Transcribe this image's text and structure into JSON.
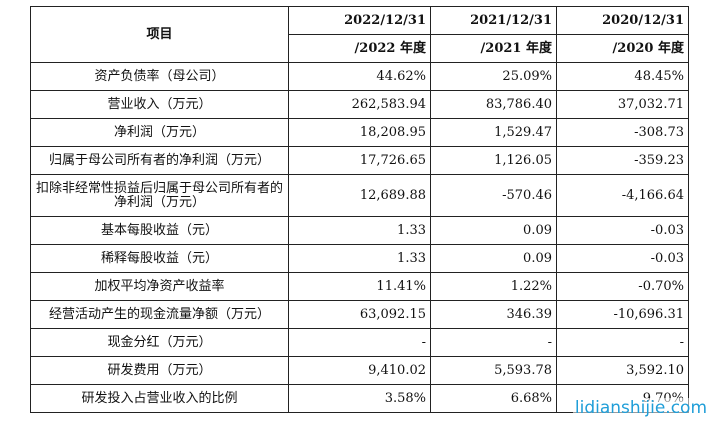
{
  "table": {
    "header_item": "项目",
    "years_top": [
      "2022/12/31",
      "2021/12/31",
      "2020/12/31"
    ],
    "years_bottom": [
      "/2022 年度",
      "/2021 年度",
      "/2020 年度"
    ],
    "rows": [
      {
        "label": "资产负债率（母公司）",
        "values": [
          "44.62%",
          "25.09%",
          "48.45%"
        ]
      },
      {
        "label": "营业收入（万元）",
        "values": [
          "262,583.94",
          "83,786.40",
          "37,032.71"
        ]
      },
      {
        "label": "净利润（万元）",
        "values": [
          "18,208.95",
          "1,529.47",
          "-308.73"
        ]
      },
      {
        "label": "归属于母公司所有者的净利润（万元）",
        "values": [
          "17,726.65",
          "1,126.05",
          "-359.23"
        ]
      },
      {
        "label": "扣除非经常性损益后归属于母公司所有者的净利润（万元）",
        "values": [
          "12,689.88",
          "-570.46",
          "-4,166.64"
        ]
      },
      {
        "label": "基本每股收益（元）",
        "values": [
          "1.33",
          "0.09",
          "-0.03"
        ]
      },
      {
        "label": "稀释每股收益（元）",
        "values": [
          "1.33",
          "0.09",
          "-0.03"
        ]
      },
      {
        "label": "加权平均净资产收益率",
        "values": [
          "11.41%",
          "1.22%",
          "-0.70%"
        ]
      },
      {
        "label": "经营活动产生的现金流量净额（万元）",
        "values": [
          "63,092.15",
          "346.39",
          "-10,696.31"
        ]
      },
      {
        "label": "现金分红（万元）",
        "values": [
          "-",
          "-",
          "-"
        ]
      },
      {
        "label": "研发费用（万元）",
        "values": [
          "9,410.02",
          "5,593.78",
          "3,592.10"
        ]
      },
      {
        "label": "研发投入占营业收入的比例",
        "values": [
          "3.58%",
          "6.68%",
          "9.70%"
        ]
      }
    ]
  },
  "watermark": "lidianshijie.com"
}
